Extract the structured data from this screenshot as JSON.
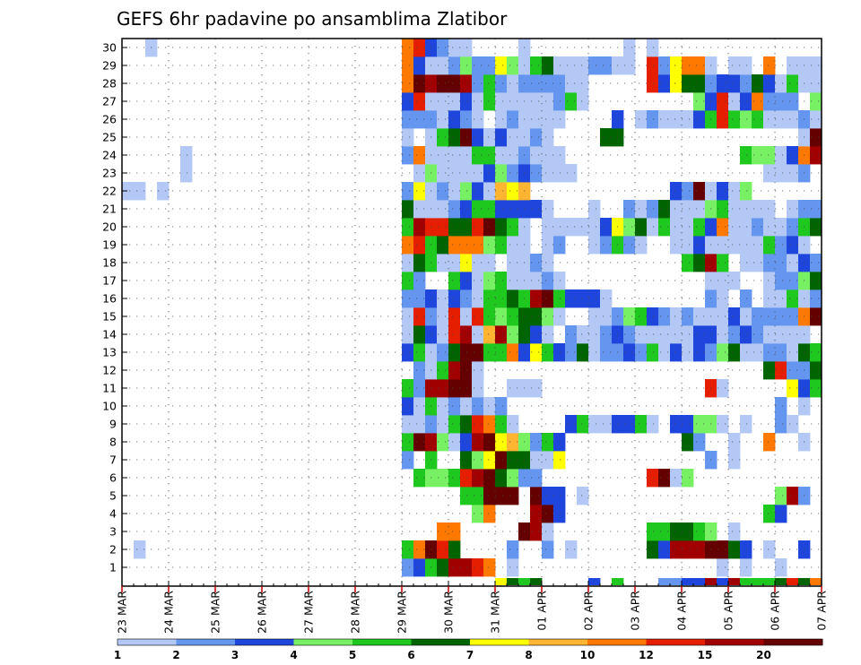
{
  "chart_data": {
    "type": "heatmap",
    "title": "GEFS 6hr padavine po ansamblima Zlatibor",
    "xlabel": "",
    "ylabel": "",
    "x_tick_labels": [
      "23 MAR",
      "24 MAR",
      "25 MAR",
      "26 MAR",
      "27 MAR",
      "28 MAR",
      "29 MAR",
      "30 MAR",
      "31 MAR",
      "01 APR",
      "02 APR",
      "03 APR",
      "04 APR",
      "05 APR",
      "06 APR",
      "07 APR"
    ],
    "y_tick_labels": [
      "1",
      "2",
      "3",
      "4",
      "5",
      "6",
      "7",
      "8",
      "9",
      "10",
      "11",
      "12",
      "13",
      "14",
      "15",
      "16",
      "17",
      "18",
      "19",
      "20",
      "21",
      "22",
      "23",
      "24",
      "25",
      "26",
      "27",
      "28",
      "29",
      "30"
    ],
    "x_steps": 60,
    "ylim": [
      0,
      30
    ],
    "grid": true,
    "colorbar": {
      "placement": "bottom",
      "labels": [
        "1",
        "2",
        "3",
        "4",
        "5",
        "6",
        "7",
        "8",
        "10",
        "12",
        "15",
        "20"
      ],
      "colors": [
        "#b4c8f5",
        "#6496f0",
        "#1e46dc",
        "#78f064",
        "#1ec81e",
        "#006400",
        "#ffff00",
        "#ffb432",
        "#ff7800",
        "#e61e00",
        "#a00000",
        "#640000"
      ]
    },
    "rows": {
      "1": {
        "24": 2,
        "25": 3,
        "26": 5,
        "27": 6,
        "28": 11,
        "29": 11,
        "30": 10,
        "31": 9,
        "33": 1,
        "51": 1,
        "53": 1,
        "56": 1
      },
      "2": {
        "1": 1,
        "24": 5,
        "25": 9,
        "26": 12,
        "27": 10,
        "28": 6,
        "33": 2,
        "36": 2,
        "38": 1,
        "45": 6,
        "46": 3,
        "47": 11,
        "48": 11,
        "49": 11,
        "50": 12,
        "51": 12,
        "52": 6,
        "53": 3,
        "55": 1,
        "58": 3
      },
      "3": {
        "27": 9,
        "28": 9,
        "34": 12,
        "35": 11,
        "36": 1,
        "45": 5,
        "46": 5,
        "47": 6,
        "48": 6,
        "49": 5,
        "50": 4,
        "52": 1
      },
      "4": {
        "30": 4,
        "31": 9,
        "35": 11,
        "36": 12,
        "37": 3,
        "55": 5,
        "56": 3
      },
      "5": {
        "29": 5,
        "30": 5,
        "31": 12,
        "32": 12,
        "33": 12,
        "35": 12,
        "36": 3,
        "37": 3,
        "39": 1,
        "56": 4,
        "57": 11,
        "58": 2
      },
      "6": {
        "25": 5,
        "26": 4,
        "27": 4,
        "28": 5,
        "29": 10,
        "30": 11,
        "31": 12,
        "32": 6,
        "33": 4,
        "34": 2,
        "35": 2,
        "45": 10,
        "46": 12,
        "47": 1,
        "48": 4
      },
      "7": {
        "24": 2,
        "26": 5,
        "29": 6,
        "30": 4,
        "31": 7,
        "32": 12,
        "33": 6,
        "34": 6,
        "35": 1,
        "36": 1,
        "37": 7,
        "50": 2,
        "52": 1
      },
      "8": {
        "24": 5,
        "25": 12,
        "26": 11,
        "27": 4,
        "28": 1,
        "29": 3,
        "30": 11,
        "31": 12,
        "32": 7,
        "33": 8,
        "34": 4,
        "35": 2,
        "36": 5,
        "37": 3,
        "48": 6,
        "49": 2,
        "52": 1,
        "55": 9,
        "58": 1
      },
      "9": {
        "24": 1,
        "25": 1,
        "26": 2,
        "27": 1,
        "28": 5,
        "29": 6,
        "30": 10,
        "31": 9,
        "32": 5,
        "33": 1,
        "38": 3,
        "39": 5,
        "40": 1,
        "41": 1,
        "42": 3,
        "43": 3,
        "44": 5,
        "45": 1,
        "47": 3,
        "48": 3,
        "49": 4,
        "50": 4,
        "51": 1,
        "53": 1,
        "56": 2,
        "57": 1
      },
      "10": {
        "24": 3,
        "25": 1,
        "26": 5,
        "27": 1,
        "28": 2,
        "29": 1,
        "30": 2,
        "31": 1,
        "32": 2,
        "56": 2,
        "58": 1
      },
      "11": {
        "24": 5,
        "25": 2,
        "26": 11,
        "27": 11,
        "28": 12,
        "29": 12,
        "30": 1,
        "33": 1,
        "34": 1,
        "35": 1,
        "50": 10,
        "51": 1,
        "57": 7,
        "58": 3,
        "59": 5
      },
      "12": {
        "25": 2,
        "26": 1,
        "27": 5,
        "28": 11,
        "29": 12,
        "30": 1,
        "55": 6,
        "56": 10,
        "57": 2,
        "58": 2,
        "59": 6
      },
      "13": {
        "24": 3,
        "25": 5,
        "26": 1,
        "27": 2,
        "28": 6,
        "29": 12,
        "30": 12,
        "31": 5,
        "32": 5,
        "33": 9,
        "34": 3,
        "35": 7,
        "36": 5,
        "37": 3,
        "38": 2,
        "39": 6,
        "40": 1,
        "41": 2,
        "42": 2,
        "43": 3,
        "44": 2,
        "45": 5,
        "46": 1,
        "47": 3,
        "48": 1,
        "49": 3,
        "50": 2,
        "51": 4,
        "52": 6,
        "53": 1,
        "54": 1,
        "55": 2,
        "56": 2,
        "57": 1,
        "58": 6,
        "59": 5
      },
      "14": {
        "24": 1,
        "25": 6,
        "26": 3,
        "27": 1,
        "28": 10,
        "29": 11,
        "30": 1,
        "31": 8,
        "32": 11,
        "33": 4,
        "34": 6,
        "35": 3,
        "36": 1,
        "38": 2,
        "39": 1,
        "40": 1,
        "41": 2,
        "42": 3,
        "43": 2,
        "44": 1,
        "45": 1,
        "46": 1,
        "47": 1,
        "48": 1,
        "49": 3,
        "50": 3,
        "51": 1,
        "52": 2,
        "53": 3,
        "54": 2,
        "55": 1,
        "56": 1,
        "57": 1,
        "58": 1
      },
      "15": {
        "24": 1,
        "25": 10,
        "26": 2,
        "27": 1,
        "28": 10,
        "29": 1,
        "30": 10,
        "31": 5,
        "32": 4,
        "33": 5,
        "34": 6,
        "35": 6,
        "36": 4,
        "37": 1,
        "40": 1,
        "41": 1,
        "42": 2,
        "43": 4,
        "44": 5,
        "45": 3,
        "46": 2,
        "47": 1,
        "48": 2,
        "49": 1,
        "50": 1,
        "51": 1,
        "52": 3,
        "53": 1,
        "54": 2,
        "55": 2,
        "56": 2,
        "57": 2,
        "58": 9,
        "59": 12
      },
      "16": {
        "24": 2,
        "25": 2,
        "26": 3,
        "27": 1,
        "28": 3,
        "29": 2,
        "30": 1,
        "31": 5,
        "32": 5,
        "33": 6,
        "34": 5,
        "35": 11,
        "36": 12,
        "37": 5,
        "38": 3,
        "39": 3,
        "40": 3,
        "41": 1,
        "50": 2,
        "51": 1,
        "53": 2,
        "55": 1,
        "56": 1,
        "57": 5,
        "58": 1,
        "59": 2
      },
      "17": {
        "24": 5,
        "25": 2,
        "28": 5,
        "29": 3,
        "30": 1,
        "31": 4,
        "32": 5,
        "33": 1,
        "34": 1,
        "35": 1,
        "36": 2,
        "37": 1,
        "50": 1,
        "51": 1,
        "52": 1,
        "55": 1,
        "56": 2,
        "57": 2,
        "58": 4,
        "59": 6
      },
      "18": {
        "24": 1,
        "25": 6,
        "26": 5,
        "27": 1,
        "28": 1,
        "29": 7,
        "30": 1,
        "31": 1,
        "33": 1,
        "34": 1,
        "35": 2,
        "36": 1,
        "48": 5,
        "49": 6,
        "50": 11,
        "51": 5,
        "53": 1,
        "54": 1,
        "55": 2,
        "56": 2,
        "57": 1,
        "58": 3,
        "59": 2
      },
      "19": {
        "24": 9,
        "25": 10,
        "26": 5,
        "27": 6,
        "28": 9,
        "29": 9,
        "30": 9,
        "31": 4,
        "32": 5,
        "33": 1,
        "34": 1,
        "36": 1,
        "37": 2,
        "40": 1,
        "41": 2,
        "42": 5,
        "43": 2,
        "44": 1,
        "47": 1,
        "48": 1,
        "49": 3,
        "50": 1,
        "51": 1,
        "52": 1,
        "53": 1,
        "54": 1,
        "55": 5,
        "56": 2,
        "57": 3,
        "58": 1
      },
      "20": {
        "24": 5,
        "25": 11,
        "26": 10,
        "27": 10,
        "28": 6,
        "29": 6,
        "30": 10,
        "31": 12,
        "32": 6,
        "33": 5,
        "34": 1,
        "36": 1,
        "37": 1,
        "38": 1,
        "39": 1,
        "40": 1,
        "41": 3,
        "42": 7,
        "43": 4,
        "44": 6,
        "45": 1,
        "46": 5,
        "47": 1,
        "48": 1,
        "49": 5,
        "50": 3,
        "51": 9,
        "52": 1,
        "53": 1,
        "54": 2,
        "55": 1,
        "56": 1,
        "57": 2,
        "58": 5,
        "59": 6
      },
      "21": {
        "24": 6,
        "25": 1,
        "26": 1,
        "27": 1,
        "28": 2,
        "29": 3,
        "30": 5,
        "31": 5,
        "32": 3,
        "33": 3,
        "34": 3,
        "35": 3,
        "36": 1,
        "40": 1,
        "43": 2,
        "44": 1,
        "45": 2,
        "46": 6,
        "47": 1,
        "48": 1,
        "49": 1,
        "50": 4,
        "51": 5,
        "52": 1,
        "53": 1,
        "54": 1,
        "55": 1,
        "57": 1,
        "58": 2,
        "59": 2
      },
      "22": {
        "0": 1,
        "1": 1,
        "3": 1,
        "24": 2,
        "25": 7,
        "26": 1,
        "27": 2,
        "28": 1,
        "29": 4,
        "30": 3,
        "31": 1,
        "32": 8,
        "33": 7,
        "34": 8,
        "47": 3,
        "48": 2,
        "49": 12,
        "50": 1,
        "51": 3,
        "52": 1,
        "53": 4
      },
      "23": {
        "5": 1,
        "25": 1,
        "26": 4,
        "27": 1,
        "28": 1,
        "29": 1,
        "30": 1,
        "31": 3,
        "32": 4,
        "33": 2,
        "34": 3,
        "35": 2,
        "36": 1,
        "37": 1,
        "38": 1,
        "55": 1,
        "56": 1,
        "57": 1,
        "58": 2
      },
      "24": {
        "5": 1,
        "24": 2,
        "25": 9,
        "26": 1,
        "27": 1,
        "28": 1,
        "29": 1,
        "30": 5,
        "31": 5,
        "32": 1,
        "33": 1,
        "34": 2,
        "35": 1,
        "36": 1,
        "37": 1,
        "53": 5,
        "54": 4,
        "55": 4,
        "56": 1,
        "57": 3,
        "58": 9,
        "59": 11
      },
      "25": {
        "24": 1,
        "26": 1,
        "27": 5,
        "28": 6,
        "29": 12,
        "30": 3,
        "31": 1,
        "32": 3,
        "33": 1,
        "34": 1,
        "35": 2,
        "36": 1,
        "41": 6,
        "42": 6,
        "58": 1,
        "59": 12
      },
      "26": {
        "24": 2,
        "25": 2,
        "26": 2,
        "27": 1,
        "28": 3,
        "29": 2,
        "30": 1,
        "32": 1,
        "33": 2,
        "34": 1,
        "35": 1,
        "36": 1,
        "37": 1,
        "42": 3,
        "44": 1,
        "45": 2,
        "46": 1,
        "47": 1,
        "48": 1,
        "49": 3,
        "50": 5,
        "51": 10,
        "52": 5,
        "53": 4,
        "54": 5,
        "55": 1,
        "56": 1,
        "57": 1,
        "58": 2,
        "59": 1
      },
      "27": {
        "24": 3,
        "25": 10,
        "26": 1,
        "27": 1,
        "28": 1,
        "29": 3,
        "30": 1,
        "31": 5,
        "32": 1,
        "33": 1,
        "34": 1,
        "35": 1,
        "36": 1,
        "37": 2,
        "38": 5,
        "39": 1,
        "49": 4,
        "50": 3,
        "51": 10,
        "52": 1,
        "53": 3,
        "54": 9,
        "55": 2,
        "56": 2,
        "57": 2,
        "59": 4
      },
      "28": {
        "24": 9,
        "25": 12,
        "26": 11,
        "27": 12,
        "28": 12,
        "29": 11,
        "30": 2,
        "31": 5,
        "32": 2,
        "33": 1,
        "34": 2,
        "35": 2,
        "36": 2,
        "37": 2,
        "38": 1,
        "39": 1,
        "45": 10,
        "46": 3,
        "47": 7,
        "48": 6,
        "49": 6,
        "50": 2,
        "51": 3,
        "52": 3,
        "53": 2,
        "54": 6,
        "55": 3,
        "56": 1,
        "57": 5,
        "58": 1,
        "59": 1
      },
      "29": {
        "24": 9,
        "25": 3,
        "26": 1,
        "27": 1,
        "28": 2,
        "29": 4,
        "30": 2,
        "31": 2,
        "32": 7,
        "33": 4,
        "34": 1,
        "35": 5,
        "36": 6,
        "37": 1,
        "38": 1,
        "39": 1,
        "40": 2,
        "41": 2,
        "42": 1,
        "43": 1,
        "45": 10,
        "46": 2,
        "47": 7,
        "48": 9,
        "49": 9,
        "50": 1,
        "52": 1,
        "53": 1,
        "55": 9,
        "57": 1,
        "58": 1,
        "59": 1
      },
      "30": {
        "2": 1,
        "24": 9,
        "25": 10,
        "26": 3,
        "27": 2,
        "28": 1,
        "29": 1,
        "34": 1,
        "43": 1,
        "45": 1
      }
    },
    "bottom_strip": {
      "32": 7,
      "33": 6,
      "34": 5,
      "35": 6,
      "40": 3,
      "42": 5,
      "46": 2,
      "47": 2,
      "48": 3,
      "49": 3,
      "50": 11,
      "51": 3,
      "52": 11,
      "53": 5,
      "54": 5,
      "55": 5,
      "56": 6,
      "57": 10,
      "58": 6,
      "59": 9
    }
  }
}
